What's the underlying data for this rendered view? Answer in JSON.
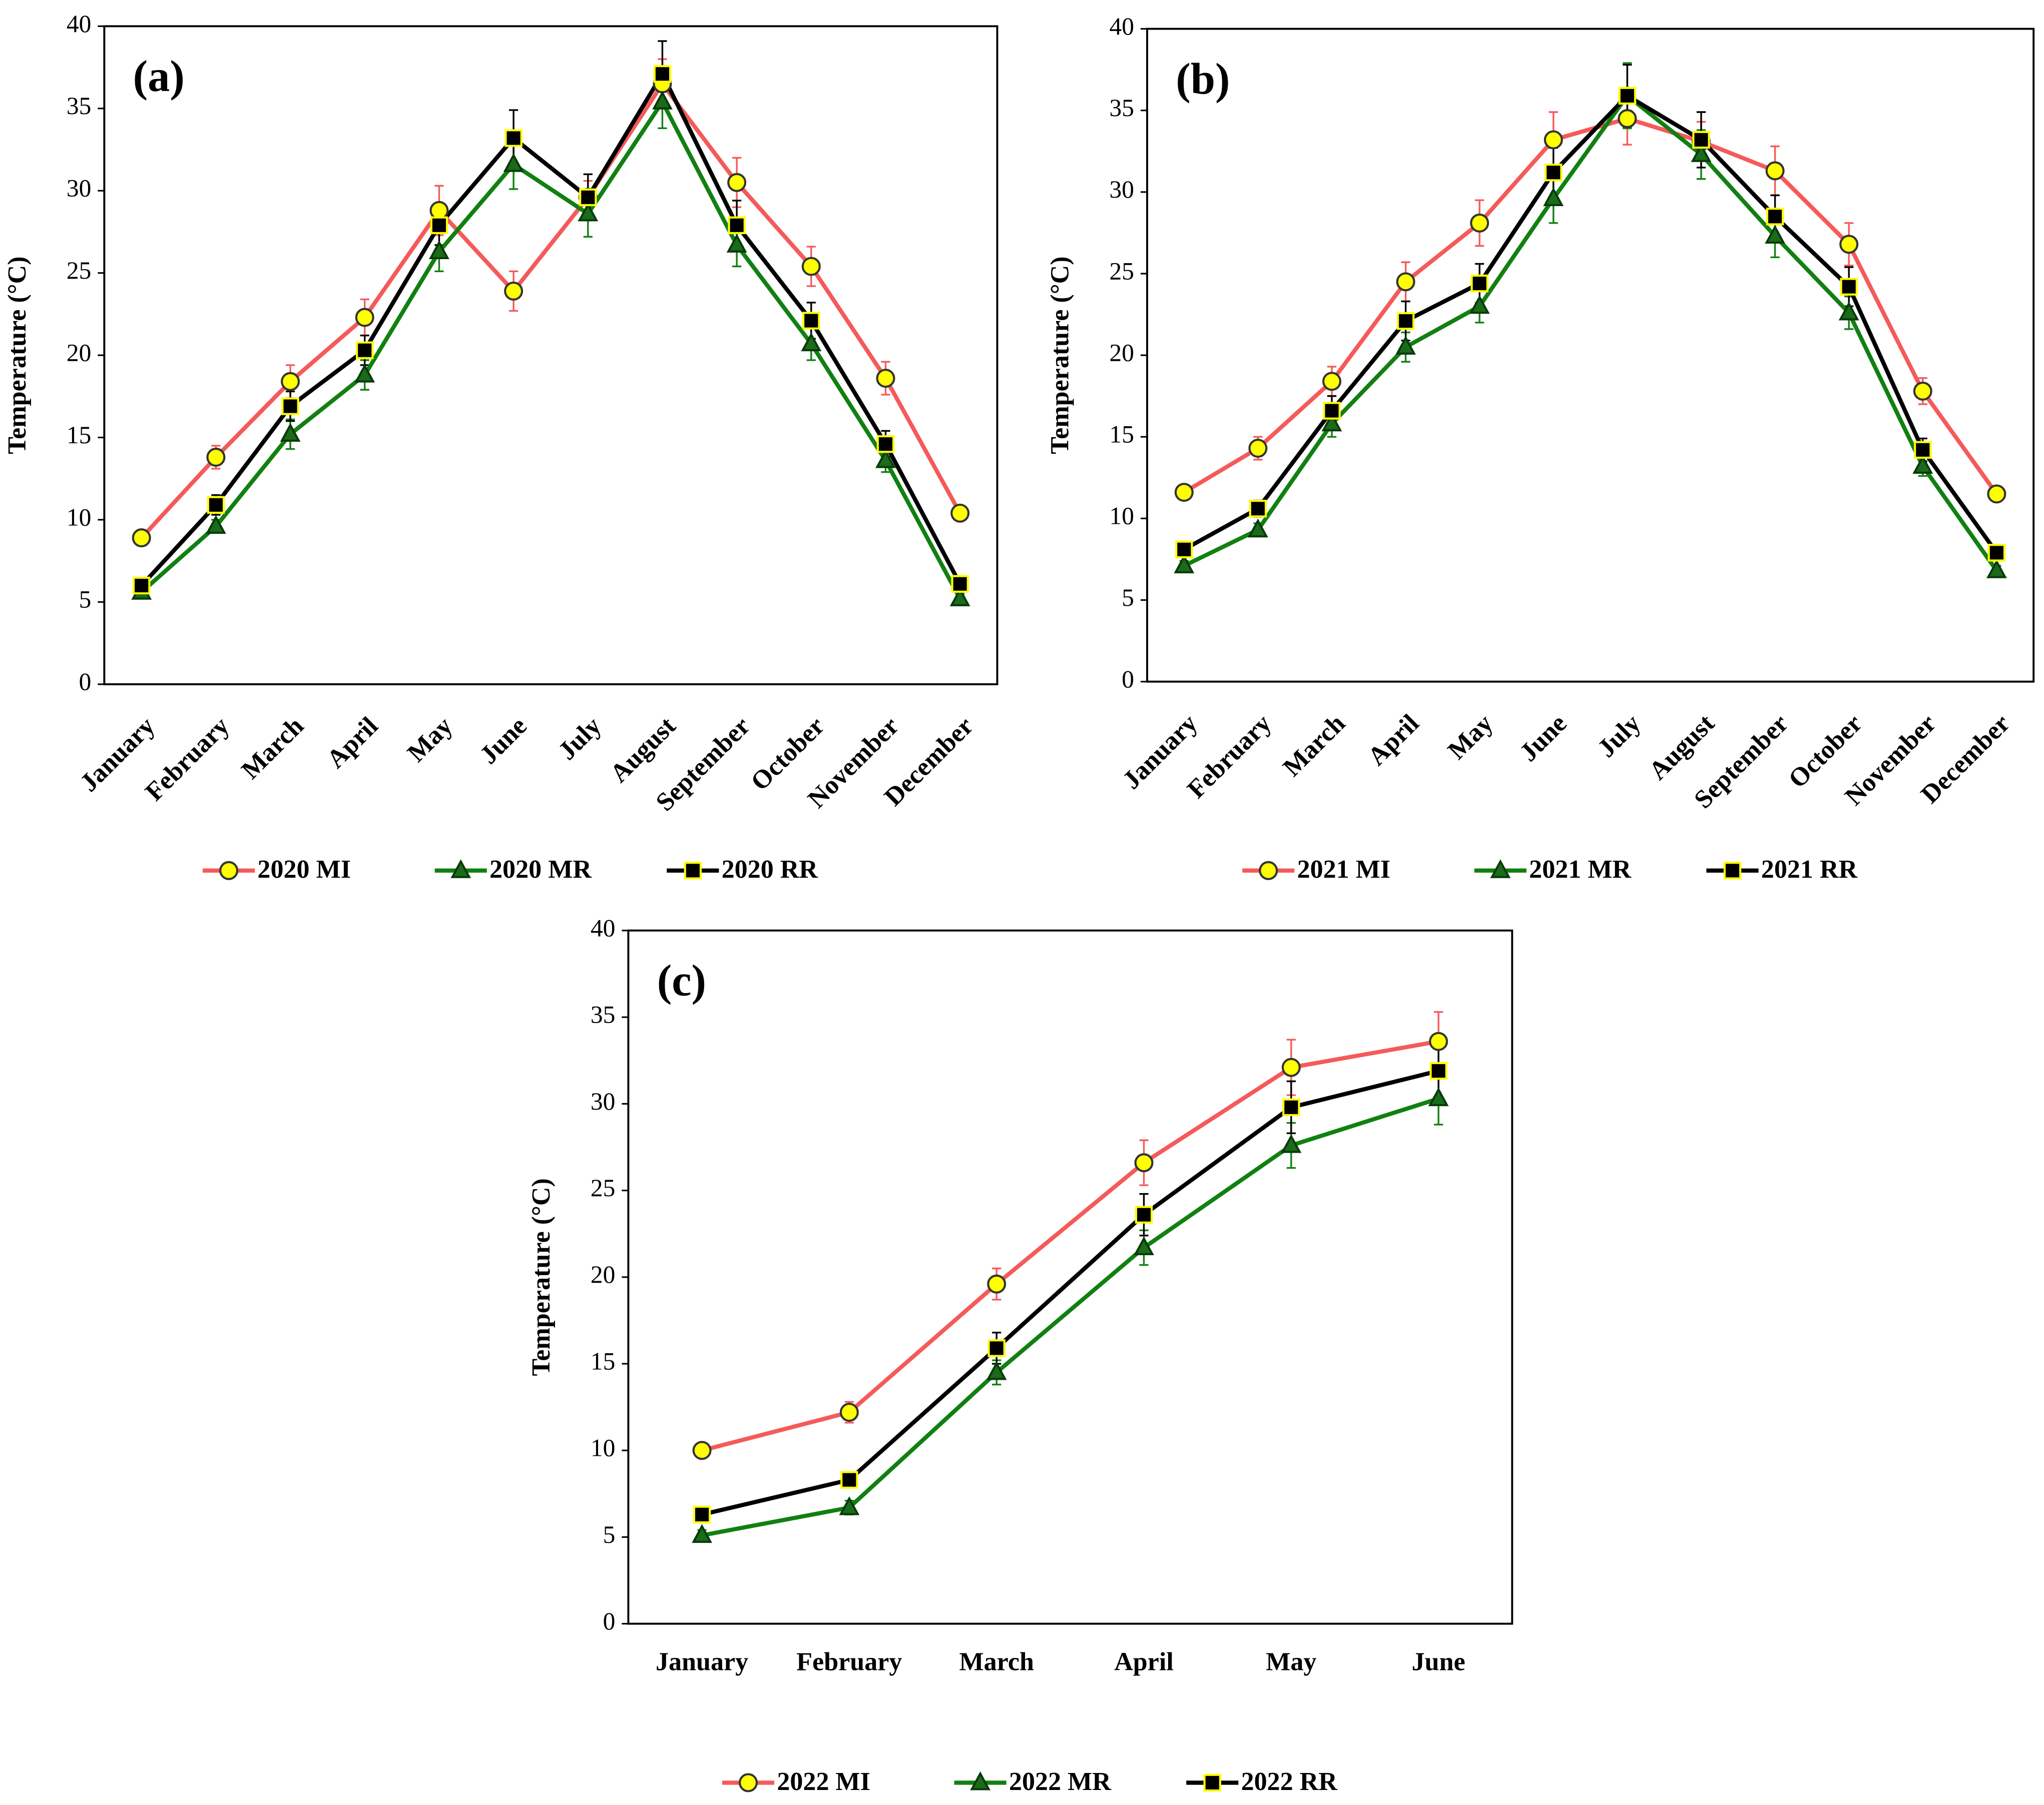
{
  "chart_data": [
    {
      "type": "line",
      "panel_label": "(a)",
      "y_label": "Temperature (°C)",
      "categories": [
        "January",
        "February",
        "March",
        "April",
        "May",
        "June",
        "July",
        "August",
        "September",
        "October",
        "November",
        "December"
      ],
      "ylim": [
        0,
        40
      ],
      "yticks": [
        0,
        5,
        10,
        15,
        20,
        25,
        30,
        35,
        40
      ],
      "grid": false,
      "legend": "bottom",
      "series": [
        {
          "name": "2020 MI",
          "color": "#f55a5a",
          "marker": "circle",
          "marker_fill": "#ffff00",
          "marker_stroke": "#333333",
          "values": [
            8.9,
            13.8,
            18.4,
            22.3,
            28.8,
            23.9,
            29.6,
            36.5,
            30.5,
            25.4,
            18.6,
            10.4
          ],
          "errors": [
            0.3,
            0.7,
            1.0,
            1.1,
            1.5,
            1.2,
            1.0,
            1.5,
            1.5,
            1.2,
            1.0,
            0.3
          ]
        },
        {
          "name": "2020 MR",
          "color": "#118011",
          "marker": "triangle",
          "marker_fill": "#1a6b1a",
          "marker_stroke": "#0a3a0a",
          "values": [
            5.6,
            9.6,
            15.2,
            18.8,
            26.3,
            31.6,
            28.6,
            35.4,
            26.7,
            20.7,
            13.6,
            5.2
          ],
          "errors": [
            0.3,
            0.4,
            0.9,
            0.9,
            1.2,
            1.5,
            1.4,
            1.6,
            1.3,
            1.0,
            0.7,
            0.3
          ]
        },
        {
          "name": "2020 RR",
          "color": "#000000",
          "marker": "square",
          "marker_fill": "#000000",
          "marker_stroke": "#ffff00",
          "values": [
            6.0,
            10.9,
            16.9,
            20.3,
            27.9,
            33.2,
            29.6,
            37.1,
            27.9,
            22.1,
            14.6,
            6.1
          ],
          "errors": [
            0.3,
            0.6,
            0.9,
            0.9,
            1.2,
            1.7,
            1.4,
            2.0,
            1.5,
            1.1,
            0.8,
            0.3
          ]
        }
      ]
    },
    {
      "type": "line",
      "panel_label": "(b)",
      "y_label": "Temperature (°C)",
      "categories": [
        "January",
        "February",
        "March",
        "April",
        "May",
        "June",
        "July",
        "August",
        "September",
        "October",
        "November",
        "December"
      ],
      "ylim": [
        0,
        40
      ],
      "yticks": [
        0,
        5,
        10,
        15,
        20,
        25,
        30,
        35,
        40
      ],
      "grid": false,
      "legend": "bottom",
      "series": [
        {
          "name": "2021 MI",
          "color": "#f55a5a",
          "marker": "circle",
          "marker_fill": "#ffff00",
          "marker_stroke": "#333333",
          "values": [
            11.6,
            14.3,
            18.4,
            24.5,
            28.1,
            33.2,
            34.5,
            33.1,
            31.3,
            26.8,
            17.8,
            11.5
          ],
          "errors": [
            0.4,
            0.7,
            0.9,
            1.2,
            1.4,
            1.7,
            1.6,
            1.2,
            1.5,
            1.3,
            0.8,
            0.4
          ]
        },
        {
          "name": "2021 MR",
          "color": "#118011",
          "marker": "triangle",
          "marker_fill": "#1a6b1a",
          "marker_stroke": "#0a3a0a",
          "values": [
            7.1,
            9.3,
            15.8,
            20.5,
            23.0,
            29.6,
            35.9,
            32.3,
            27.3,
            22.6,
            13.2,
            6.8
          ],
          "errors": [
            0.3,
            0.4,
            0.8,
            0.9,
            1.0,
            1.5,
            2.0,
            1.5,
            1.3,
            1.0,
            0.6,
            0.3
          ]
        },
        {
          "name": "2021 RR",
          "color": "#000000",
          "marker": "square",
          "marker_fill": "#000000",
          "marker_stroke": "#ffff00",
          "values": [
            8.1,
            10.6,
            16.6,
            22.1,
            24.4,
            31.2,
            35.9,
            33.2,
            28.5,
            24.2,
            14.2,
            7.9
          ],
          "errors": [
            0.3,
            0.5,
            0.9,
            1.2,
            1.2,
            1.5,
            1.9,
            1.7,
            1.3,
            1.2,
            0.7,
            0.3
          ]
        }
      ]
    },
    {
      "type": "line",
      "panel_label": "(c)",
      "y_label": "Temperature (°C)",
      "categories": [
        "January",
        "February",
        "March",
        "April",
        "May",
        "June"
      ],
      "ylim": [
        0,
        40
      ],
      "yticks": [
        0,
        5,
        10,
        15,
        20,
        25,
        30,
        35,
        40
      ],
      "grid": false,
      "legend": "bottom",
      "series": [
        {
          "name": "2022 MI",
          "color": "#f55a5a",
          "marker": "circle",
          "marker_fill": "#ffff00",
          "marker_stroke": "#333333",
          "values": [
            10.0,
            12.2,
            19.6,
            26.6,
            32.1,
            33.6
          ],
          "errors": [
            0.3,
            0.6,
            0.9,
            1.3,
            1.6,
            1.7
          ]
        },
        {
          "name": "2022 MR",
          "color": "#118011",
          "marker": "triangle",
          "marker_fill": "#1a6b1a",
          "marker_stroke": "#0a3a0a",
          "values": [
            5.1,
            6.7,
            14.5,
            21.7,
            27.6,
            30.3
          ],
          "errors": [
            0.3,
            0.4,
            0.7,
            1.0,
            1.3,
            1.5
          ]
        },
        {
          "name": "2022 RR",
          "color": "#000000",
          "marker": "square",
          "marker_fill": "#000000",
          "marker_stroke": "#ffff00",
          "values": [
            6.3,
            8.3,
            15.9,
            23.6,
            29.8,
            31.9
          ],
          "errors": [
            0.3,
            0.4,
            0.9,
            1.2,
            1.5,
            1.6
          ]
        }
      ]
    }
  ]
}
